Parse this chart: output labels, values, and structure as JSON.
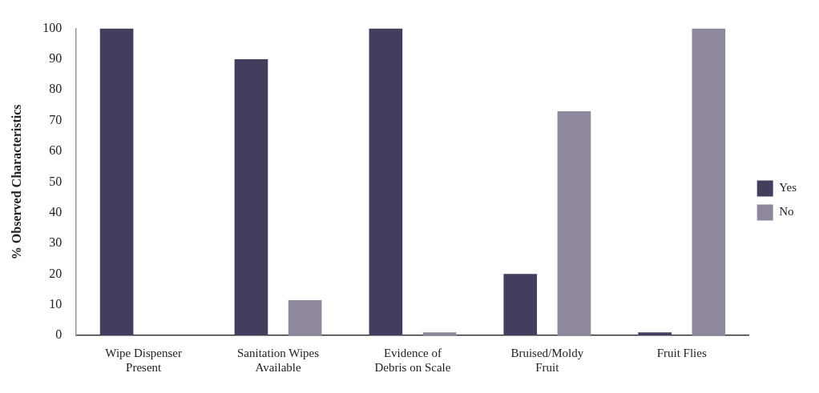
{
  "chart_data": {
    "type": "bar",
    "ylabel": "% Observed Characteristics",
    "categories": [
      [
        "Wipe Dispenser",
        "Present"
      ],
      [
        "Sanitation Wipes",
        "Available"
      ],
      [
        "Evidence of",
        "Debris on Scale"
      ],
      [
        "Bruised/Moldy",
        "Fruit"
      ],
      "Fruit Flies"
    ],
    "series": [
      {
        "name": "Yes",
        "color": "#453d5e",
        "values": [
          100,
          90,
          100,
          20,
          1
        ]
      },
      {
        "name": "No",
        "color": "#8f879c",
        "values": [
          0,
          11.5,
          1,
          73,
          100
        ]
      }
    ],
    "ylim": [
      0,
      100
    ],
    "yticks": [
      0,
      10,
      20,
      30,
      40,
      50,
      60,
      70,
      80,
      90,
      100
    ],
    "grid": false,
    "legend": "right"
  }
}
